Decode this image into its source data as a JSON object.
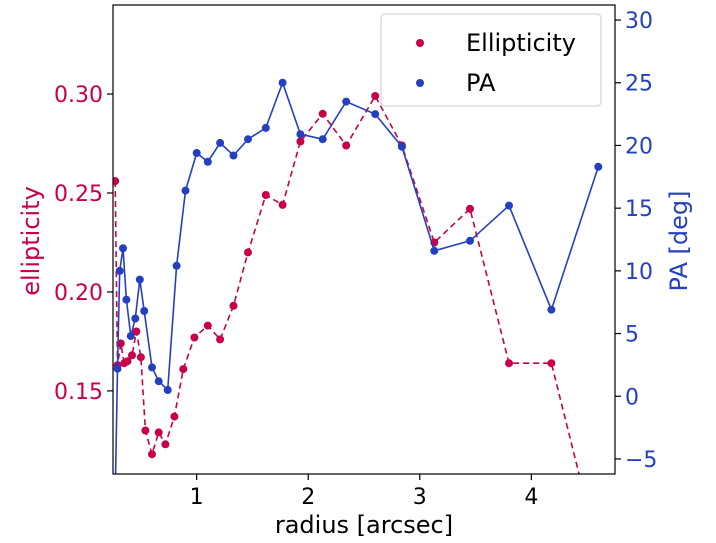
{
  "chart_data": {
    "type": "line",
    "xlabel": "radius [arcsec]",
    "ylabel_left": "ellipticity",
    "ylabel_right": "PA [deg]",
    "xlim": [
      0.25,
      4.75
    ],
    "ylim_left": [
      0.108,
      0.345
    ],
    "ylim_right": [
      -6.2,
      31.2
    ],
    "x_ticks": [
      1,
      2,
      3,
      4
    ],
    "y_left_ticks": [
      0.15,
      0.2,
      0.25,
      0.3
    ],
    "y_right_ticks": [
      -5,
      0,
      5,
      10,
      15,
      20,
      25,
      30
    ],
    "colors": {
      "ellipticity": "#c8004c",
      "pa": "#2440c0"
    },
    "legend": {
      "position": "top-right",
      "entries": [
        {
          "key": "ellipticity",
          "label": "Ellipticity"
        },
        {
          "key": "pa",
          "label": "PA"
        }
      ]
    },
    "series": [
      {
        "name": "Ellipticity",
        "axis": "left",
        "style": "dashed",
        "color": "#c8004c",
        "x": [
          0.27,
          0.29,
          0.32,
          0.35,
          0.38,
          0.42,
          0.46,
          0.5,
          0.54,
          0.6,
          0.66,
          0.72,
          0.8,
          0.88,
          0.98,
          1.1,
          1.21,
          1.33,
          1.46,
          1.62,
          1.77,
          1.93,
          2.13,
          2.34,
          2.6,
          2.84,
          3.13,
          3.45,
          3.8,
          4.18,
          4.45
        ],
        "y": [
          0.256,
          0.163,
          0.174,
          0.164,
          0.165,
          0.168,
          0.18,
          0.167,
          0.13,
          0.118,
          0.129,
          0.123,
          0.137,
          0.161,
          0.177,
          0.183,
          0.176,
          0.193,
          0.22,
          0.249,
          0.244,
          0.276,
          0.29,
          0.274,
          0.299,
          0.274,
          0.225,
          0.242,
          0.164,
          0.164,
          0.103
        ]
      },
      {
        "name": "PA",
        "axis": "right",
        "style": "solid",
        "color": "#2440c0",
        "x": [
          0.27,
          0.29,
          0.31,
          0.34,
          0.37,
          0.41,
          0.45,
          0.49,
          0.53,
          0.6,
          0.66,
          0.74,
          0.82,
          0.9,
          1.0,
          1.1,
          1.21,
          1.33,
          1.46,
          1.62,
          1.77,
          1.93,
          2.13,
          2.34,
          2.6,
          2.84,
          3.13,
          3.45,
          3.8,
          4.18,
          4.6
        ],
        "y": [
          -8,
          2.2,
          10.0,
          11.8,
          7.7,
          4.8,
          6.2,
          9.3,
          6.8,
          2.3,
          1.2,
          0.5,
          10.4,
          16.4,
          19.4,
          18.7,
          20.2,
          19.2,
          20.5,
          21.4,
          25.0,
          20.9,
          20.5,
          23.5,
          22.5,
          19.9,
          11.6,
          12.4,
          15.2,
          6.9,
          18.3
        ]
      }
    ]
  }
}
